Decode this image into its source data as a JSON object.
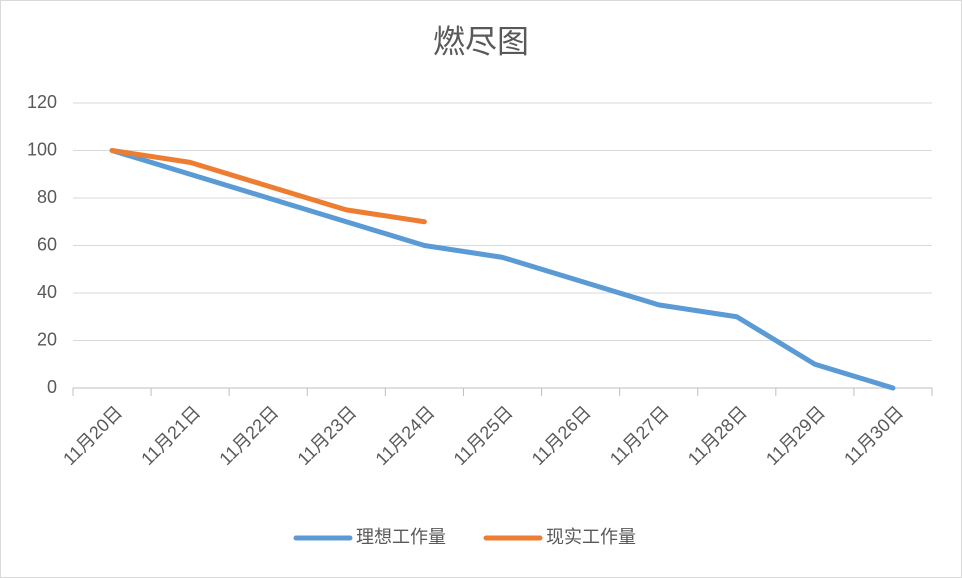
{
  "chart_data": {
    "type": "line",
    "title": "燃尽图",
    "categories": [
      "11月20日",
      "11月21日",
      "11月22日",
      "11月23日",
      "11月24日",
      "11月25日",
      "11月26日",
      "11月27日",
      "11月28日",
      "11月29日",
      "11月30日"
    ],
    "series": [
      {
        "name": "理想工作量",
        "color": "#5b9bd5",
        "values": [
          100,
          90,
          80,
          70,
          60,
          55,
          45,
          35,
          30,
          10,
          0
        ]
      },
      {
        "name": "现实工作量",
        "color": "#ed7d31",
        "values": [
          100,
          95,
          85,
          75,
          70,
          null,
          null,
          null,
          null,
          null,
          null
        ]
      }
    ],
    "ylim": [
      0,
      120
    ],
    "yticks": [
      0,
      20,
      40,
      60,
      80,
      100,
      120
    ],
    "grid": true,
    "legend": "bottom"
  }
}
